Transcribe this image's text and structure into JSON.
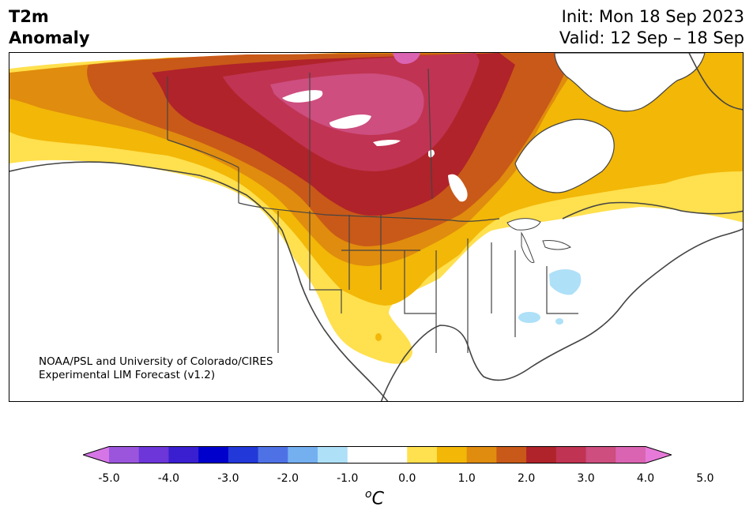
{
  "header": {
    "title_line1": "T2m",
    "title_line2": "Anomaly",
    "init": "Init: Mon 18 Sep 2023",
    "valid": "Valid: 12 Sep – 18 Sep"
  },
  "credit": {
    "line1": "NOAA/PSL and University of Colorado/CIRES",
    "line2": "Experimental LIM Forecast (v1.2)"
  },
  "colorbar": {
    "ticks": [
      "-5.0",
      "-4.0",
      "-3.0",
      "-2.0",
      "-1.0",
      "0.0",
      "1.0",
      "2.0",
      "3.0",
      "4.0",
      "5.0"
    ],
    "unit_main": "C",
    "unit_sup": "o",
    "colors": [
      "#d676e6",
      "#9b55dd",
      "#6c36d8",
      "#3a1fd0",
      "#0000cc",
      "#2338d8",
      "#4e72e6",
      "#74b0f0",
      "#aee0f8",
      "#ffffff",
      "#ffffff",
      "#ffe04e",
      "#f2b707",
      "#e08c0e",
      "#c95918",
      "#b0232a",
      "#c03352",
      "#cd4e7f",
      "#da64b2",
      "#e77ad8"
    ]
  },
  "map": {
    "region": "North America",
    "colors": {
      "c1": "#ffe04e",
      "c15": "#f2b707",
      "c2": "#e08c0e",
      "c25": "#c95918",
      "c3": "#b0232a",
      "c35": "#c03352",
      "c4": "#cd4e7f",
      "c45": "#da64b2",
      "neg1": "#aee0f8",
      "outline": "#444444"
    }
  }
}
